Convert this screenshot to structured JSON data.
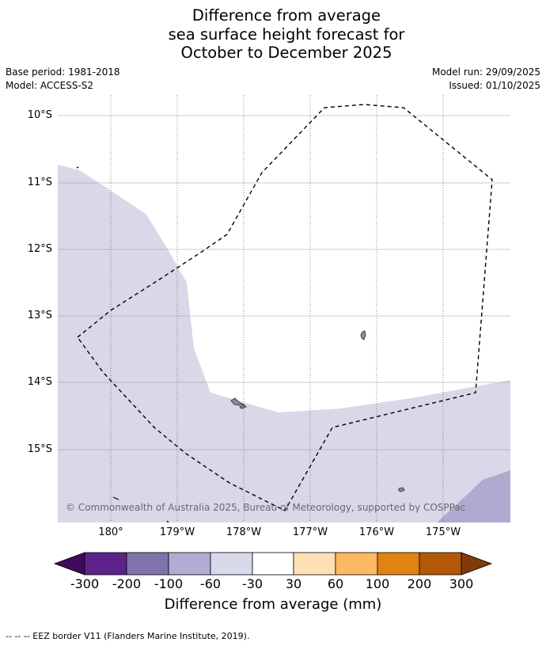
{
  "title": {
    "line1": "Difference from average",
    "line2": "sea surface height forecast for",
    "line3": "October to December 2025"
  },
  "meta": {
    "base_period": "Base period: 1981-2018",
    "model": "Model: ACCESS-S2",
    "model_run": "Model run: 29/09/2025",
    "issued": "Issued: 01/10/2025"
  },
  "map": {
    "lat_labels": [
      "10°S",
      "11°S",
      "12°S",
      "13°S",
      "14°S",
      "15°S"
    ],
    "lon_labels": [
      "180°",
      "179°W",
      "178°W",
      "177°W",
      "176°W",
      "175°W"
    ],
    "copyright": "© Commonwealth of Australia 2025, Bureau of Meteorology, supported by COSPPac",
    "colors": {
      "light_anomaly": "#d8d8e8",
      "mid_anomaly": "#b0a9d0",
      "land": "#8c8ca0",
      "eez_line": "#000000"
    }
  },
  "colorbar": {
    "ticks": [
      "-300",
      "-200",
      "-100",
      "-60",
      "-30",
      "30",
      "60",
      "100",
      "200",
      "300"
    ],
    "colors": [
      "#3f0a5c",
      "#5c2289",
      "#8073ac",
      "#b2abd2",
      "#d8daeb",
      "#ffffff",
      "#fee0b6",
      "#fdb863",
      "#e08214",
      "#b35806",
      "#7f3b08"
    ],
    "label": "Difference from average (mm)"
  },
  "footer": {
    "legend": "--  --  -- EEZ border V11 (Flanders Marine Institute, 2019)."
  }
}
